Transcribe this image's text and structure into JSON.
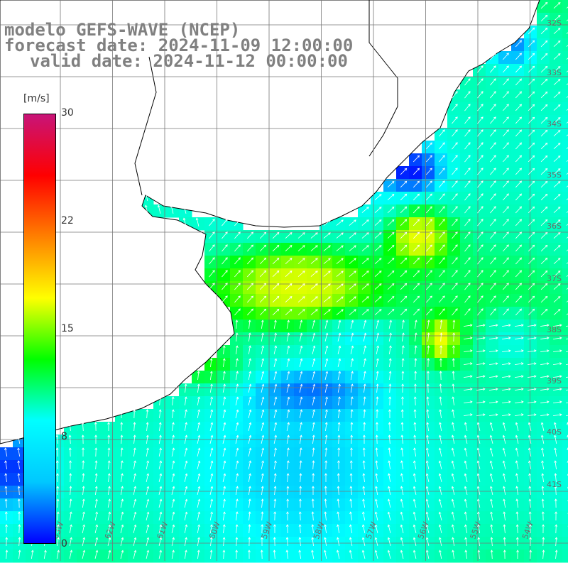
{
  "title": {
    "line1": "modelo GEFS-WAVE (NCEP)",
    "line2": "forecast date: 2024-11-09 12:00:00",
    "line3": "valid date: 2024-11-12 00:00:00"
  },
  "colorbar": {
    "unit": "[m/s]",
    "ticks": [
      "30",
      "22",
      "15",
      "8",
      "0"
    ],
    "tick_values": [
      30,
      22,
      15,
      8,
      0
    ],
    "range": [
      0,
      30
    ],
    "colors": [
      "#0000ff",
      "#00c8ff",
      "#00ffff",
      "#00ff00",
      "#ffff00",
      "#ff8000",
      "#ff0000",
      "#c81478"
    ]
  },
  "map": {
    "field": "wind speed",
    "lat_labels": [
      "32S",
      "33S",
      "34S",
      "35S",
      "36S",
      "37S",
      "38S",
      "39S",
      "40S",
      "41S"
    ],
    "lon_labels": [
      "63W",
      "62W",
      "61W",
      "60W",
      "59W",
      "58W",
      "57W",
      "56W",
      "55W",
      "54W"
    ],
    "land_color": "#ffffff",
    "coast_color": "#000000"
  }
}
